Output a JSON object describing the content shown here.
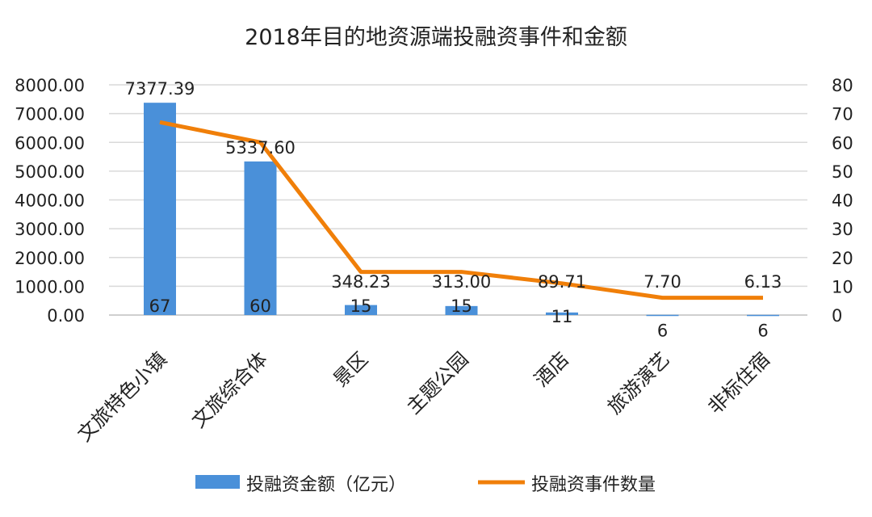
{
  "chart_data": {
    "type": "bar+line",
    "title": "2018年目的地资源端投融资事件和金额",
    "categories": [
      "文旅特色小镇",
      "文旅综合体",
      "景区",
      "主题公园",
      "酒店",
      "旅游演艺",
      "非标住宿"
    ],
    "series": [
      {
        "name": "投融资金额（亿元）",
        "type": "bar",
        "axis": "left",
        "color": "#4a90d9",
        "values": [
          7377.39,
          5337.6,
          348.23,
          313.0,
          89.71,
          7.7,
          6.13
        ],
        "labels": [
          "7377.39",
          "5337.60",
          "348.23",
          "313.00",
          "89.71",
          "7.70",
          "6.13"
        ]
      },
      {
        "name": "投融资事件数量",
        "type": "line",
        "axis": "right",
        "color": "#f07f09",
        "values": [
          67,
          60,
          15,
          15,
          11,
          6,
          6
        ],
        "labels": [
          "67",
          "60",
          "15",
          "15",
          "11",
          "6",
          "6"
        ]
      }
    ],
    "y_left": {
      "min": 0,
      "max": 8000,
      "step": 1000,
      "ticks": [
        "0.00",
        "1000.00",
        "2000.00",
        "3000.00",
        "4000.00",
        "5000.00",
        "6000.00",
        "7000.00",
        "8000.00"
      ]
    },
    "y_right": {
      "min": 0,
      "max": 80,
      "step": 10,
      "ticks": [
        "0",
        "10",
        "20",
        "30",
        "40",
        "50",
        "60",
        "70",
        "80"
      ]
    },
    "grid": true,
    "legend": "bottom"
  }
}
